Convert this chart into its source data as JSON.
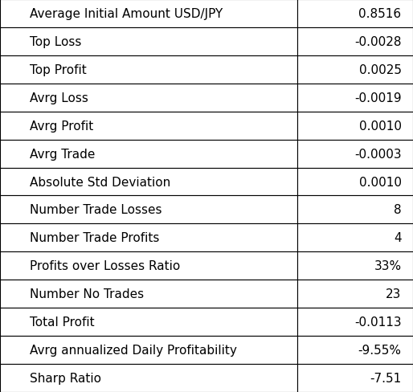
{
  "rows": [
    [
      "Average Initial Amount USD/JPY",
      "0.8516"
    ],
    [
      "Top Loss",
      "-0.0028"
    ],
    [
      "Top Profit",
      "0.0025"
    ],
    [
      "Avrg Loss",
      "-0.0019"
    ],
    [
      "Avrg Profit",
      "0.0010"
    ],
    [
      "Avrg Trade",
      "-0.0003"
    ],
    [
      "Absolute Std Deviation",
      "0.0010"
    ],
    [
      "Number Trade Losses",
      "8"
    ],
    [
      "Number Trade Profits",
      "4"
    ],
    [
      "Profits over Losses Ratio",
      "33%"
    ],
    [
      "Number No Trades",
      "23"
    ],
    [
      "Total Profit",
      "-0.0113"
    ],
    [
      "Avrg annualized Daily Profitability",
      "-9.55%"
    ],
    [
      "Sharp Ratio",
      "-7.51"
    ]
  ],
  "bg_color": "#ffffff",
  "border_color": "#000000",
  "text_color": "#000000",
  "font_size": 11.0,
  "fig_width": 5.14,
  "fig_height": 4.89,
  "dpi": 100
}
